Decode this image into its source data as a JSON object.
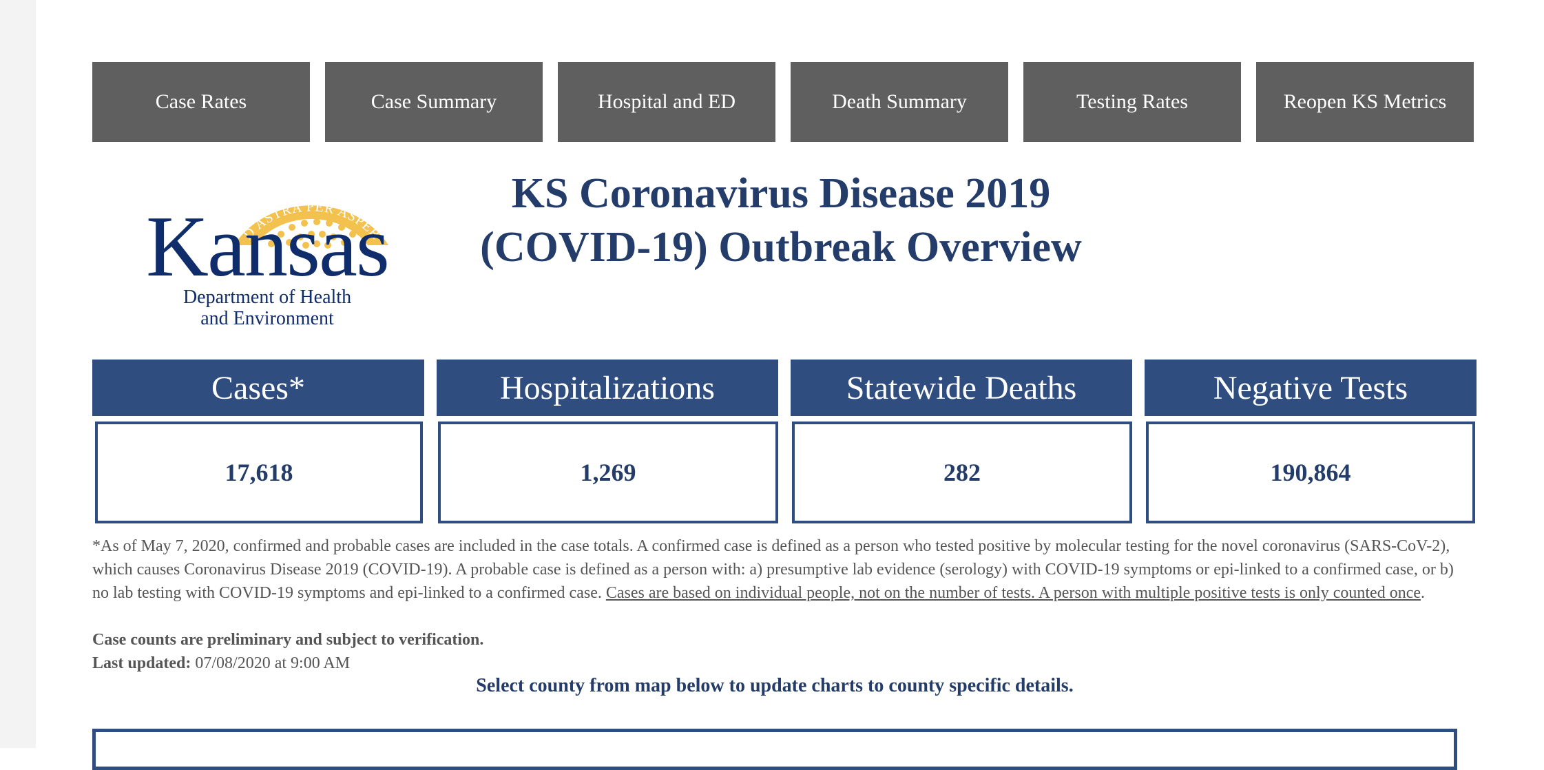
{
  "nav": {
    "tabs": [
      {
        "label": "Case Rates"
      },
      {
        "label": "Case Summary"
      },
      {
        "label": "Hospital and ED"
      },
      {
        "label": "Death Summary"
      },
      {
        "label": "Testing Rates"
      },
      {
        "label": "Reopen KS Metrics"
      }
    ]
  },
  "logo": {
    "motto": "AD ASTRA PER ASPERA",
    "word": "Kansas",
    "sub_line1": "Department of Health",
    "sub_line2": "and Environment",
    "gold_color": "#f3c14e",
    "navy_color": "#0f2c6b"
  },
  "title": {
    "line1": "KS Coronavirus Disease 2019",
    "line2": "(COVID-19) Outbreak Overview"
  },
  "stats": [
    {
      "label": "Cases*",
      "value": "17,618"
    },
    {
      "label": "Hospitalizations",
      "value": "1,269"
    },
    {
      "label": "Statewide Deaths",
      "value": "282"
    },
    {
      "label": "Negative Tests",
      "value": "190,864"
    }
  ],
  "note": {
    "text": "*As of May 7, 2020, confirmed and probable cases are included in the case totals. A confirmed case is defined as a person who tested positive by molecular testing for the novel coronavirus (SARS-CoV-2), which causes Coronavirus Disease 2019 (COVID-19). A probable case is defined as a person with: a) presumptive lab evidence (serology) with COVID-19 symptoms or epi-linked to a confirmed case, or b) no lab testing with COVID-19 symptoms and epi-linked to a confirmed case. ",
    "link": "Cases are based on individual people, not on the number of tests. A person with multiple positive tests is only counted once",
    "end": "."
  },
  "preliminary": "Case counts are preliminary and subject to verification.",
  "updated": {
    "label": "Last updated:",
    "value": " 07/08/2020 at 9:00 AM"
  },
  "instruction": "Select county from map below to update charts to county specific details.",
  "colors": {
    "nav_bg": "#5f5f5f",
    "stat_header": "#2f4d7f",
    "title_text": "#243c69"
  }
}
